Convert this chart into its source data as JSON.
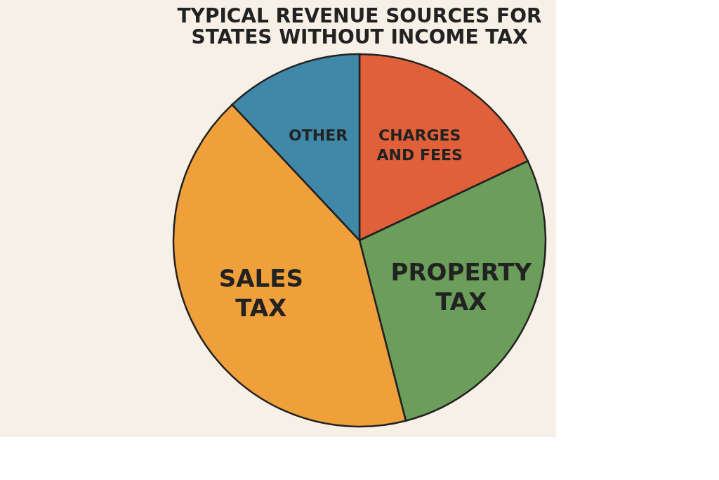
{
  "chart_data": {
    "type": "pie",
    "title": "TYPICAL REVENUE SOURCES FOR STATES WITHOUT INCOME TAX",
    "categories": [
      "CHARGES AND FEES",
      "PROPERTY TAX",
      "SALES TAX",
      "OTHER"
    ],
    "values": [
      18,
      28,
      42,
      12
    ],
    "colors": [
      "#e0603a",
      "#6a9e5a",
      "#f0a03a",
      "#3f88a8"
    ],
    "legend": false
  }
}
